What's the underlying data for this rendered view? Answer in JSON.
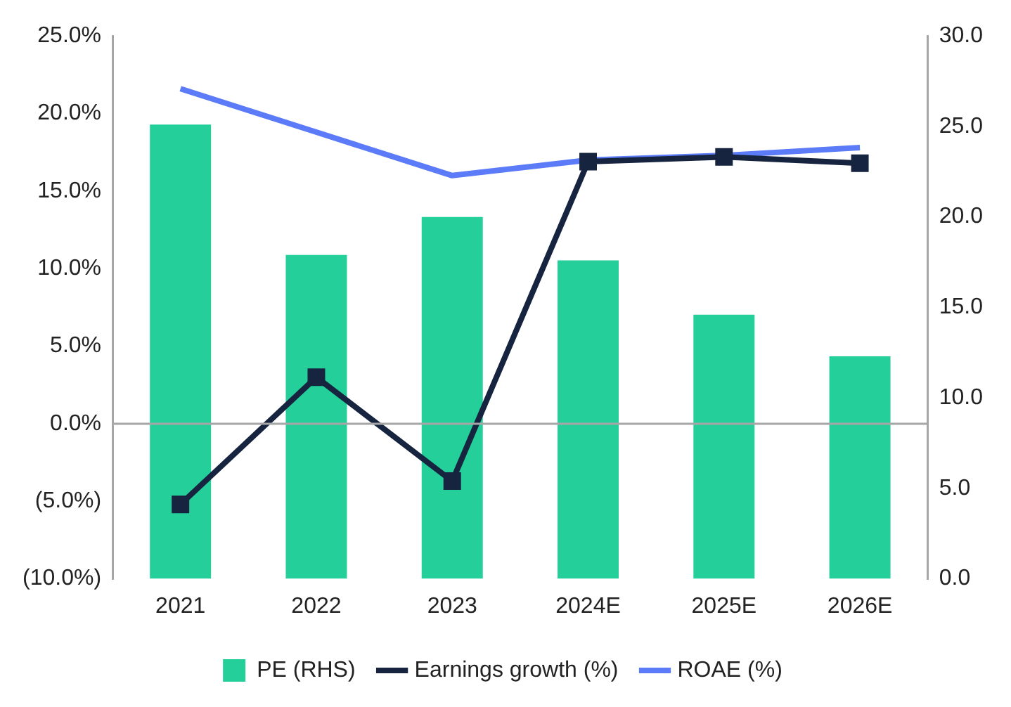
{
  "chart_data": {
    "type": "bar",
    "categories": [
      "2021",
      "2022",
      "2023",
      "2024E",
      "2025E",
      "2026E"
    ],
    "series": [
      {
        "name": "PE (RHS)",
        "axis": "y2",
        "color": "#24cf9a",
        "values": [
          25.1,
          17.9,
          20.0,
          17.6,
          14.6,
          12.3
        ]
      },
      {
        "name": "Earnings growth (%)",
        "type": "line",
        "axis": "y",
        "color": "#172440",
        "marker": "square",
        "values": [
          -5.2,
          3.0,
          -3.7,
          16.9,
          17.2,
          16.8
        ]
      },
      {
        "name": "ROAE (%)",
        "type": "line",
        "axis": "y",
        "color": "#5b7bf8",
        "marker": "none",
        "values": [
          21.6,
          18.8,
          16.0,
          17.0,
          17.3,
          17.8
        ]
      }
    ],
    "ylim": [
      -10,
      25
    ],
    "yticks": [
      {
        "value": -10,
        "label": "(10.0%)"
      },
      {
        "value": -5,
        "label": "(5.0%)"
      },
      {
        "value": 0,
        "label": "0.0%"
      },
      {
        "value": 5,
        "label": "5.0%"
      },
      {
        "value": 10,
        "label": "10.0%"
      },
      {
        "value": 15,
        "label": "15.0%"
      },
      {
        "value": 20,
        "label": "20.0%"
      },
      {
        "value": 25,
        "label": "25.0%"
      }
    ],
    "y2lim": [
      0,
      30
    ],
    "y2ticks": [
      {
        "value": 0,
        "label": "0.0"
      },
      {
        "value": 5,
        "label": "5.0"
      },
      {
        "value": 10,
        "label": "10.0"
      },
      {
        "value": 15,
        "label": "15.0"
      },
      {
        "value": 20,
        "label": "20.0"
      },
      {
        "value": 25,
        "label": "25.0"
      },
      {
        "value": 30,
        "label": "30.0"
      }
    ],
    "ref_lines": [
      {
        "axis": "y",
        "value": 0,
        "color": "#a6a6a6"
      }
    ],
    "grid": false,
    "legend": "bottom"
  }
}
